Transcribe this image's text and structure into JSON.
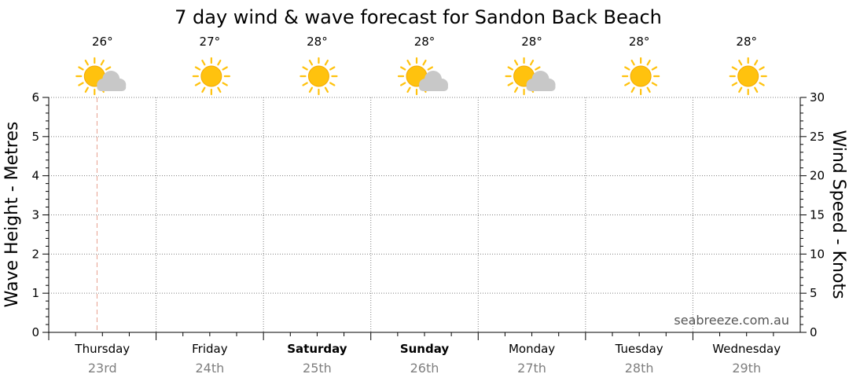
{
  "chart_data": {
    "type": "line",
    "title": "7 day wind & wave forecast for Sandon Back Beach",
    "ylabel_left": "Wave Height - Metres",
    "ylabel_right": "Wind Speed - Knots",
    "y_left_range": [
      0,
      6
    ],
    "y_left_ticks": [
      "0",
      "1",
      "2",
      "3",
      "4",
      "5",
      "6"
    ],
    "y_right_range": [
      0,
      30
    ],
    "y_right_ticks": [
      "0",
      "5",
      "10",
      "15",
      "20",
      "25",
      "30"
    ],
    "grid": true,
    "days": [
      {
        "day": "Thursday",
        "date": "23rd",
        "temp": "26°",
        "weather": "partly-cloudy-icon",
        "bold": false
      },
      {
        "day": "Friday",
        "date": "24th",
        "temp": "27°",
        "weather": "sunny-icon",
        "bold": false
      },
      {
        "day": "Saturday",
        "date": "25th",
        "temp": "28°",
        "weather": "sunny-icon",
        "bold": true
      },
      {
        "day": "Sunday",
        "date": "26th",
        "temp": "28°",
        "weather": "partly-cloudy-icon",
        "bold": true
      },
      {
        "day": "Monday",
        "date": "27th",
        "temp": "28°",
        "weather": "partly-cloudy-icon",
        "bold": false
      },
      {
        "day": "Tuesday",
        "date": "28th",
        "temp": "28°",
        "weather": "sunny-icon",
        "bold": false
      },
      {
        "day": "Wednesday",
        "date": "29th",
        "temp": "28°",
        "weather": "sunny-icon",
        "bold": false
      }
    ],
    "current_time_marker": "Thursday",
    "series": []
  },
  "watermark": "seabreeze.com.au",
  "colors": {
    "sun": "#ffc20e",
    "sun_stroke": "#f2a900",
    "cloud": "#c8c8c8",
    "grid": "#7f7f7f",
    "now_marker": "#e8a090"
  }
}
